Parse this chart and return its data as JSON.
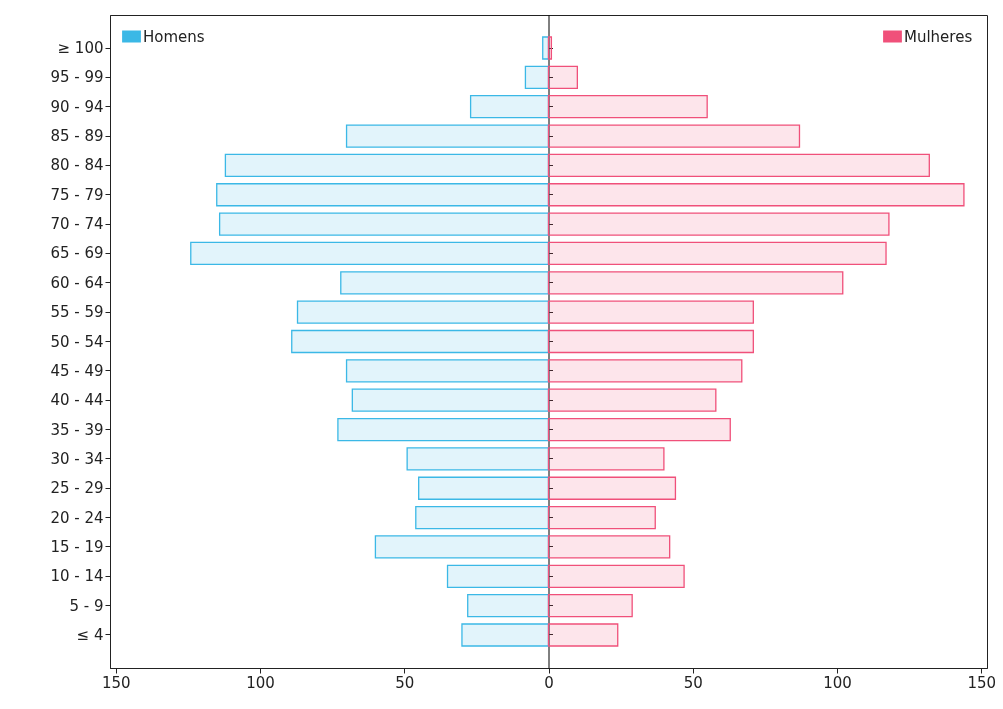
{
  "chart_data": {
    "type": "bar",
    "orientation": "horizontal",
    "categories": [
      "≥ 100",
      "95 - 99",
      "90 - 94",
      "85 - 89",
      "80 - 84",
      "75 - 79",
      "70 - 74",
      "65 - 69",
      "60 - 64",
      "55 - 59",
      "50 - 54",
      "45 - 49",
      "40 - 44",
      "35 - 39",
      "30 - 34",
      "25 - 29",
      "20 - 24",
      "15 - 19",
      "10 - 14",
      "5 - 9",
      "≤ 4"
    ],
    "series": [
      {
        "name": "Homens",
        "color": "#3bb8e6",
        "values": [
          -2,
          -8,
          -27,
          -70,
          -112,
          -115,
          -114,
          -124,
          -72,
          -87,
          -89,
          -70,
          -68,
          -73,
          -49,
          -45,
          -46,
          -60,
          -35,
          -28,
          -30
        ]
      },
      {
        "name": "Mulheres",
        "color": "#f0507a",
        "values": [
          1,
          10,
          55,
          87,
          132,
          144,
          118,
          117,
          102,
          71,
          71,
          67,
          58,
          63,
          40,
          44,
          37,
          42,
          47,
          29,
          24
        ]
      }
    ],
    "xlim": [
      -152,
      152
    ],
    "xticks": [
      {
        "value": -150,
        "label": "150"
      },
      {
        "value": -100,
        "label": "100"
      },
      {
        "value": -50,
        "label": "50"
      },
      0,
      50,
      100,
      150
    ],
    "legend": "top"
  }
}
